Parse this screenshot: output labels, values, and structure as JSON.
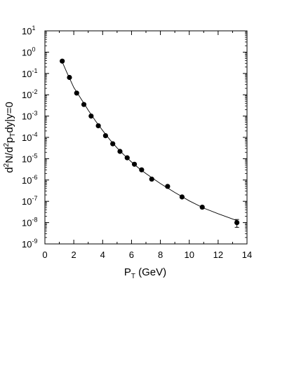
{
  "chart_data": {
    "type": "scatter",
    "xlabel": "P",
    "xlabel_sub": "T",
    "xlabel_unit": " (GeV)",
    "ylabel_parts": [
      "d",
      "2",
      "N/d",
      "2",
      "p",
      "T",
      "dy|y=0"
    ],
    "x_ticks": [
      "0",
      "2",
      "4",
      "6",
      "8",
      "10",
      "12",
      "14"
    ],
    "y_ticks": [
      {
        "base": "10",
        "exp": "-9"
      },
      {
        "base": "10",
        "exp": "-8"
      },
      {
        "base": "10",
        "exp": "-7"
      },
      {
        "base": "10",
        "exp": "-6"
      },
      {
        "base": "10",
        "exp": "-5"
      },
      {
        "base": "10",
        "exp": "-4"
      },
      {
        "base": "10",
        "exp": "-3"
      },
      {
        "base": "10",
        "exp": "-2"
      },
      {
        "base": "10",
        "exp": "-1"
      },
      {
        "base": "10",
        "exp": "0"
      },
      {
        "base": "10",
        "exp": "1"
      }
    ],
    "xlim": [
      0,
      14
    ],
    "ylim": [
      1e-09,
      10
    ],
    "yscale": "log",
    "grid": false,
    "series": [
      {
        "kind": "points",
        "x": [
          1.2,
          1.7,
          2.2,
          2.7,
          3.2,
          3.7,
          4.2,
          4.7,
          5.2,
          5.7,
          6.2,
          6.7,
          7.4,
          8.5,
          9.5,
          10.9,
          13.3
        ],
        "y": [
          0.38,
          0.065,
          0.012,
          0.0035,
          0.001,
          0.00035,
          0.00012,
          5e-05,
          2.2e-05,
          1.1e-05,
          5.5e-06,
          3e-06,
          1.1e-06,
          5e-07,
          1.6e-07,
          5.3e-08,
          1e-08
        ],
        "yerr_low": [
          null,
          null,
          null,
          null,
          null,
          null,
          null,
          null,
          null,
          null,
          null,
          null,
          null,
          null,
          null,
          null,
          6e-09
        ],
        "yerr_high": [
          null,
          null,
          null,
          null,
          null,
          null,
          null,
          null,
          null,
          null,
          null,
          null,
          null,
          null,
          null,
          null,
          1.4e-08
        ]
      },
      {
        "kind": "fit-line",
        "x": [
          1.2,
          1.5,
          2.0,
          2.5,
          3.0,
          3.5,
          4.0,
          4.5,
          5.0,
          5.5,
          6.0,
          6.5,
          7.0,
          8.0,
          9.0,
          10.0,
          11.0,
          12.0,
          13.3
        ],
        "y": [
          0.35,
          0.12,
          0.022,
          0.0065,
          0.0019,
          0.0006,
          0.00021,
          7.8e-05,
          3.2e-05,
          1.45e-05,
          7e-06,
          3.6e-06,
          2e-06,
          6.8e-07,
          2.6e-07,
          1.05e-07,
          4.8e-08,
          2.6e-08,
          1.25e-08
        ]
      }
    ]
  }
}
